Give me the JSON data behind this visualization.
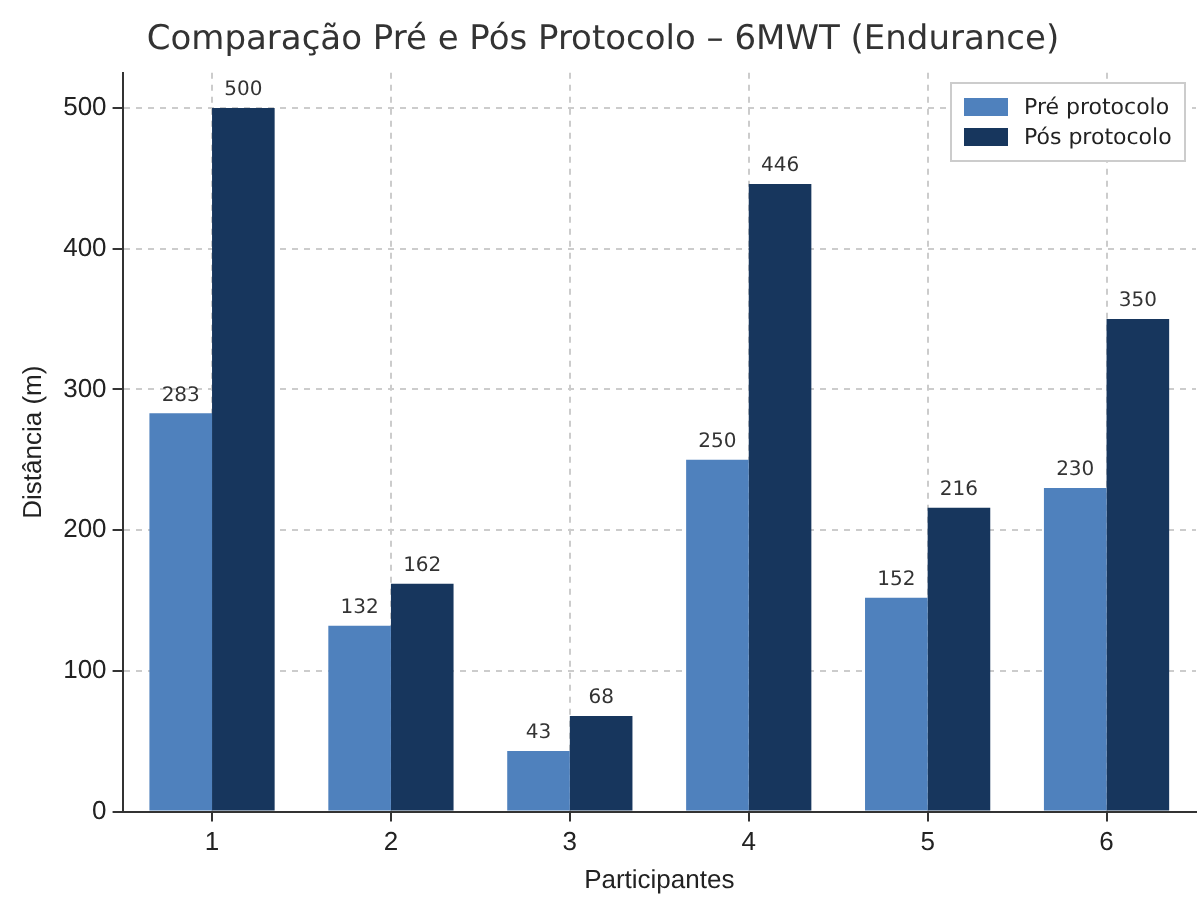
{
  "chart_data": {
    "type": "bar",
    "title": "Comparação Pré e Pós Protocolo – 6MWT (Endurance)",
    "xlabel": "Participantes",
    "ylabel": "Distância (m)",
    "categories": [
      "1",
      "2",
      "3",
      "4",
      "5",
      "6"
    ],
    "series": [
      {
        "name": "Pré protocolo",
        "color": "#4f81bd",
        "values": [
          283,
          132,
          43,
          250,
          152,
          230
        ]
      },
      {
        "name": "Pós protocolo",
        "color": "#17365d",
        "values": [
          500,
          162,
          68,
          446,
          216,
          350
        ]
      }
    ],
    "ylim": [
      0,
      525
    ],
    "yticks": [
      0,
      100,
      200,
      300,
      400,
      500
    ],
    "grid": true,
    "legend": "top right",
    "data_labels": true
  }
}
